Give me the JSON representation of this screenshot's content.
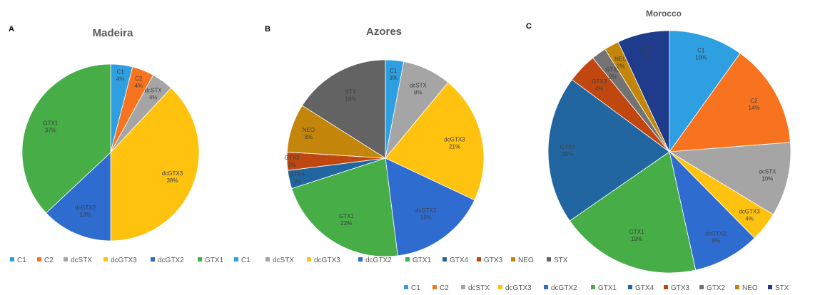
{
  "colors": {
    "C1": "#2e9fe0",
    "C2": "#f7731f",
    "dcSTX": "#a5a5a5",
    "dcGTX3": "#ffc20e",
    "dcGTX2": "#2f6cd0",
    "GTX1": "#46ad47",
    "GTX4": "#2166a0",
    "GTX3": "#c0470f",
    "GTX2": "#737373",
    "NEO": "#c4860a",
    "STX": "#1f3b8c",
    "STX_dark": "#636363"
  },
  "chart_data": [
    {
      "type": "pie",
      "panel": "A",
      "title": "Madeira",
      "slices": [
        {
          "name": "C1",
          "value": 4,
          "label": "C1\n4%"
        },
        {
          "name": "C2",
          "value": 4,
          "label": "C2\n4%"
        },
        {
          "name": "dcSTX",
          "value": 4,
          "label": "dcSTX\n4%"
        },
        {
          "name": "dcGTX3",
          "value": 38,
          "label": "dcGTX3\n38%"
        },
        {
          "name": "dcGTX2",
          "value": 13,
          "label": "dcGTX2\n13%"
        },
        {
          "name": "GTX1",
          "value": 37,
          "label": "GTX1\n37%"
        }
      ],
      "legend": [
        "C1",
        "C2",
        "dcSTX",
        "dcGTX3",
        "dcGTX2",
        "GTX1"
      ]
    },
    {
      "type": "pie",
      "panel": "B",
      "title": "Azores",
      "slices": [
        {
          "name": "C1",
          "value": 3,
          "label": "C1\n3%"
        },
        {
          "name": "dcSTX",
          "value": 8,
          "label": "dcSTX\n8%"
        },
        {
          "name": "dcGTX3",
          "value": 21,
          "label": "dcGTX3\n21%"
        },
        {
          "name": "dcGTX2",
          "value": 16,
          "label": "dcGTX2\n16%"
        },
        {
          "name": "GTX1",
          "value": 22,
          "label": "GTX1\n22%"
        },
        {
          "name": "GTX4",
          "value": 3,
          "label": "GTX4\n3%"
        },
        {
          "name": "GTX3",
          "value": 3,
          "label": "GTX3\n3%"
        },
        {
          "name": "NEO",
          "value": 8,
          "label": "NEO\n8%"
        },
        {
          "name": "STX",
          "value": 16,
          "label": "STX\n16%"
        }
      ],
      "legend": [
        "C1",
        "dcSTX",
        "dcGTX3",
        "dcGTX2",
        "GTX1",
        "GTX4",
        "GTX3",
        "NEO",
        "STX"
      ]
    },
    {
      "type": "pie",
      "panel": "C",
      "title": "Morocco",
      "slices": [
        {
          "name": "C1",
          "value": 10,
          "label": "C1\n10%"
        },
        {
          "name": "C2",
          "value": 14,
          "label": "C2\n14%"
        },
        {
          "name": "dcSTX",
          "value": 10,
          "label": "dcSTX\n10%"
        },
        {
          "name": "dcGTX3",
          "value": 4,
          "label": "dcGTX3\n4%"
        },
        {
          "name": "dcGTX2",
          "value": 9,
          "label": "dcGTX2\n9%"
        },
        {
          "name": "GTX1",
          "value": 19,
          "label": "GTX1\n19%"
        },
        {
          "name": "GTX4",
          "value": 20,
          "label": "GTX4\n20%"
        },
        {
          "name": "GTX3",
          "value": 4,
          "label": "GTX3\n4%"
        },
        {
          "name": "GTX2",
          "value": 2,
          "label": "GTX2\n2%"
        },
        {
          "name": "NEO",
          "value": 2,
          "label": "NEO\n2%"
        },
        {
          "name": "STX",
          "value": 7,
          "label": "STX\n7%"
        }
      ],
      "legend": [
        "C1",
        "C2",
        "dcSTX",
        "dcGTX3",
        "dcGTX2",
        "GTX1",
        "GTX4",
        "GTX3",
        "GTX2",
        "NEO",
        "STX"
      ]
    }
  ]
}
